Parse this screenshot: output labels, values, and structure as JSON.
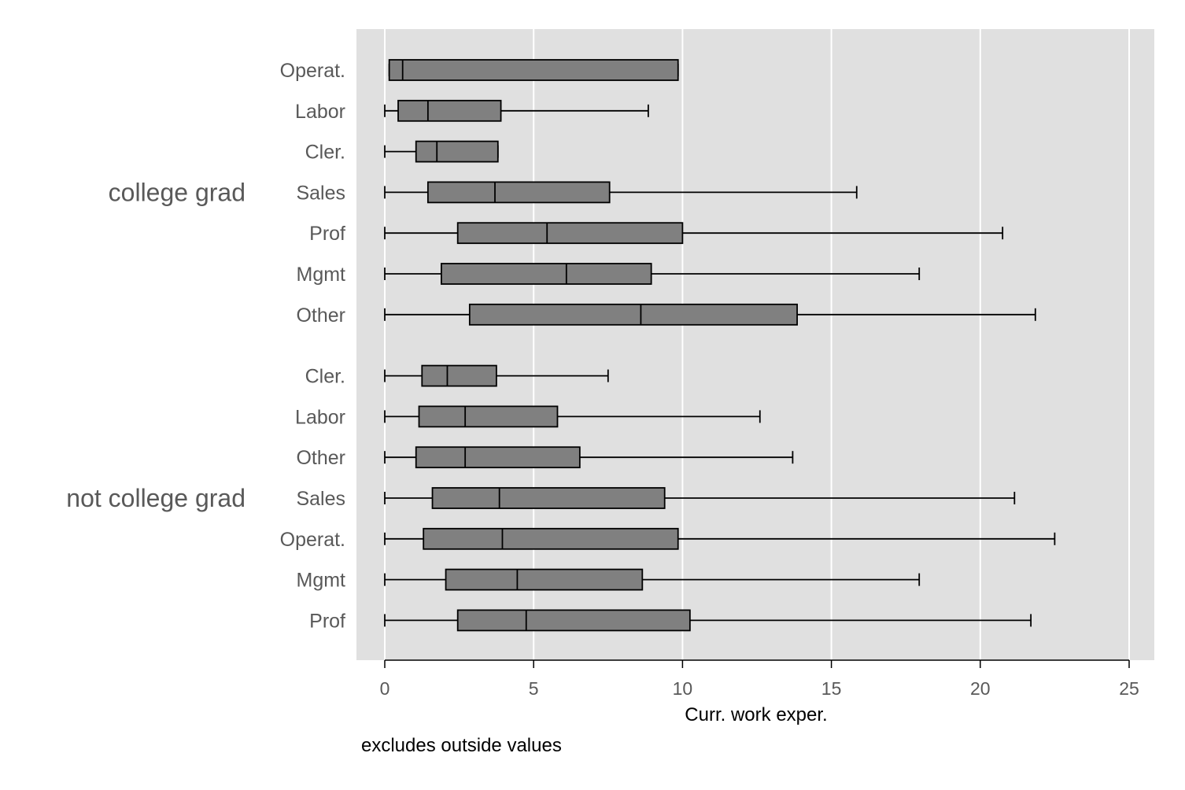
{
  "colors": {
    "plot_background": "#e0e0e0",
    "gridline": "#ffffff",
    "box_fill": "#808080",
    "stroke": "#000000",
    "label_text": "#595959"
  },
  "chart_data": {
    "type": "boxplot",
    "orientation": "horizontal",
    "xlabel": "Curr. work exper.",
    "xlim": [
      0,
      25
    ],
    "xticks": [
      0,
      5,
      10,
      15,
      20,
      25
    ],
    "grid": true,
    "note": "excludes outside values",
    "groups": [
      {
        "name": "college grad",
        "boxes": [
          {
            "label": "Operat.",
            "whisker_low": 0.15,
            "q1": 0.15,
            "median": 0.6,
            "q3": 9.85,
            "whisker_high": 9.85
          },
          {
            "label": "Labor",
            "whisker_low": 0,
            "q1": 0.45,
            "median": 1.45,
            "q3": 3.9,
            "whisker_high": 8.85
          },
          {
            "label": "Cler.",
            "whisker_low": 0,
            "q1": 1.05,
            "median": 1.75,
            "q3": 3.8,
            "whisker_high": 3.8
          },
          {
            "label": "Sales",
            "whisker_low": 0,
            "q1": 1.45,
            "median": 3.7,
            "q3": 7.55,
            "whisker_high": 15.85
          },
          {
            "label": "Prof",
            "whisker_low": 0,
            "q1": 2.45,
            "median": 5.45,
            "q3": 10.0,
            "whisker_high": 20.75
          },
          {
            "label": "Mgmt",
            "whisker_low": 0,
            "q1": 1.9,
            "median": 6.1,
            "q3": 8.95,
            "whisker_high": 17.95
          },
          {
            "label": "Other",
            "whisker_low": 0,
            "q1": 2.85,
            "median": 8.6,
            "q3": 13.85,
            "whisker_high": 21.85
          }
        ]
      },
      {
        "name": "not college grad",
        "boxes": [
          {
            "label": "Cler.",
            "whisker_low": 0,
            "q1": 1.25,
            "median": 2.1,
            "q3": 3.75,
            "whisker_high": 7.5
          },
          {
            "label": "Labor",
            "whisker_low": 0,
            "q1": 1.15,
            "median": 2.7,
            "q3": 5.8,
            "whisker_high": 12.6
          },
          {
            "label": "Other",
            "whisker_low": 0,
            "q1": 1.05,
            "median": 2.7,
            "q3": 6.55,
            "whisker_high": 13.7
          },
          {
            "label": "Sales",
            "whisker_low": 0,
            "q1": 1.6,
            "median": 3.85,
            "q3": 9.4,
            "whisker_high": 21.15
          },
          {
            "label": "Operat.",
            "whisker_low": 0,
            "q1": 1.3,
            "median": 3.95,
            "q3": 9.85,
            "whisker_high": 22.5
          },
          {
            "label": "Mgmt",
            "whisker_low": 0,
            "q1": 2.05,
            "median": 4.45,
            "q3": 8.65,
            "whisker_high": 17.95
          },
          {
            "label": "Prof",
            "whisker_low": 0,
            "q1": 2.45,
            "median": 4.75,
            "q3": 10.25,
            "whisker_high": 21.7
          }
        ]
      }
    ]
  }
}
